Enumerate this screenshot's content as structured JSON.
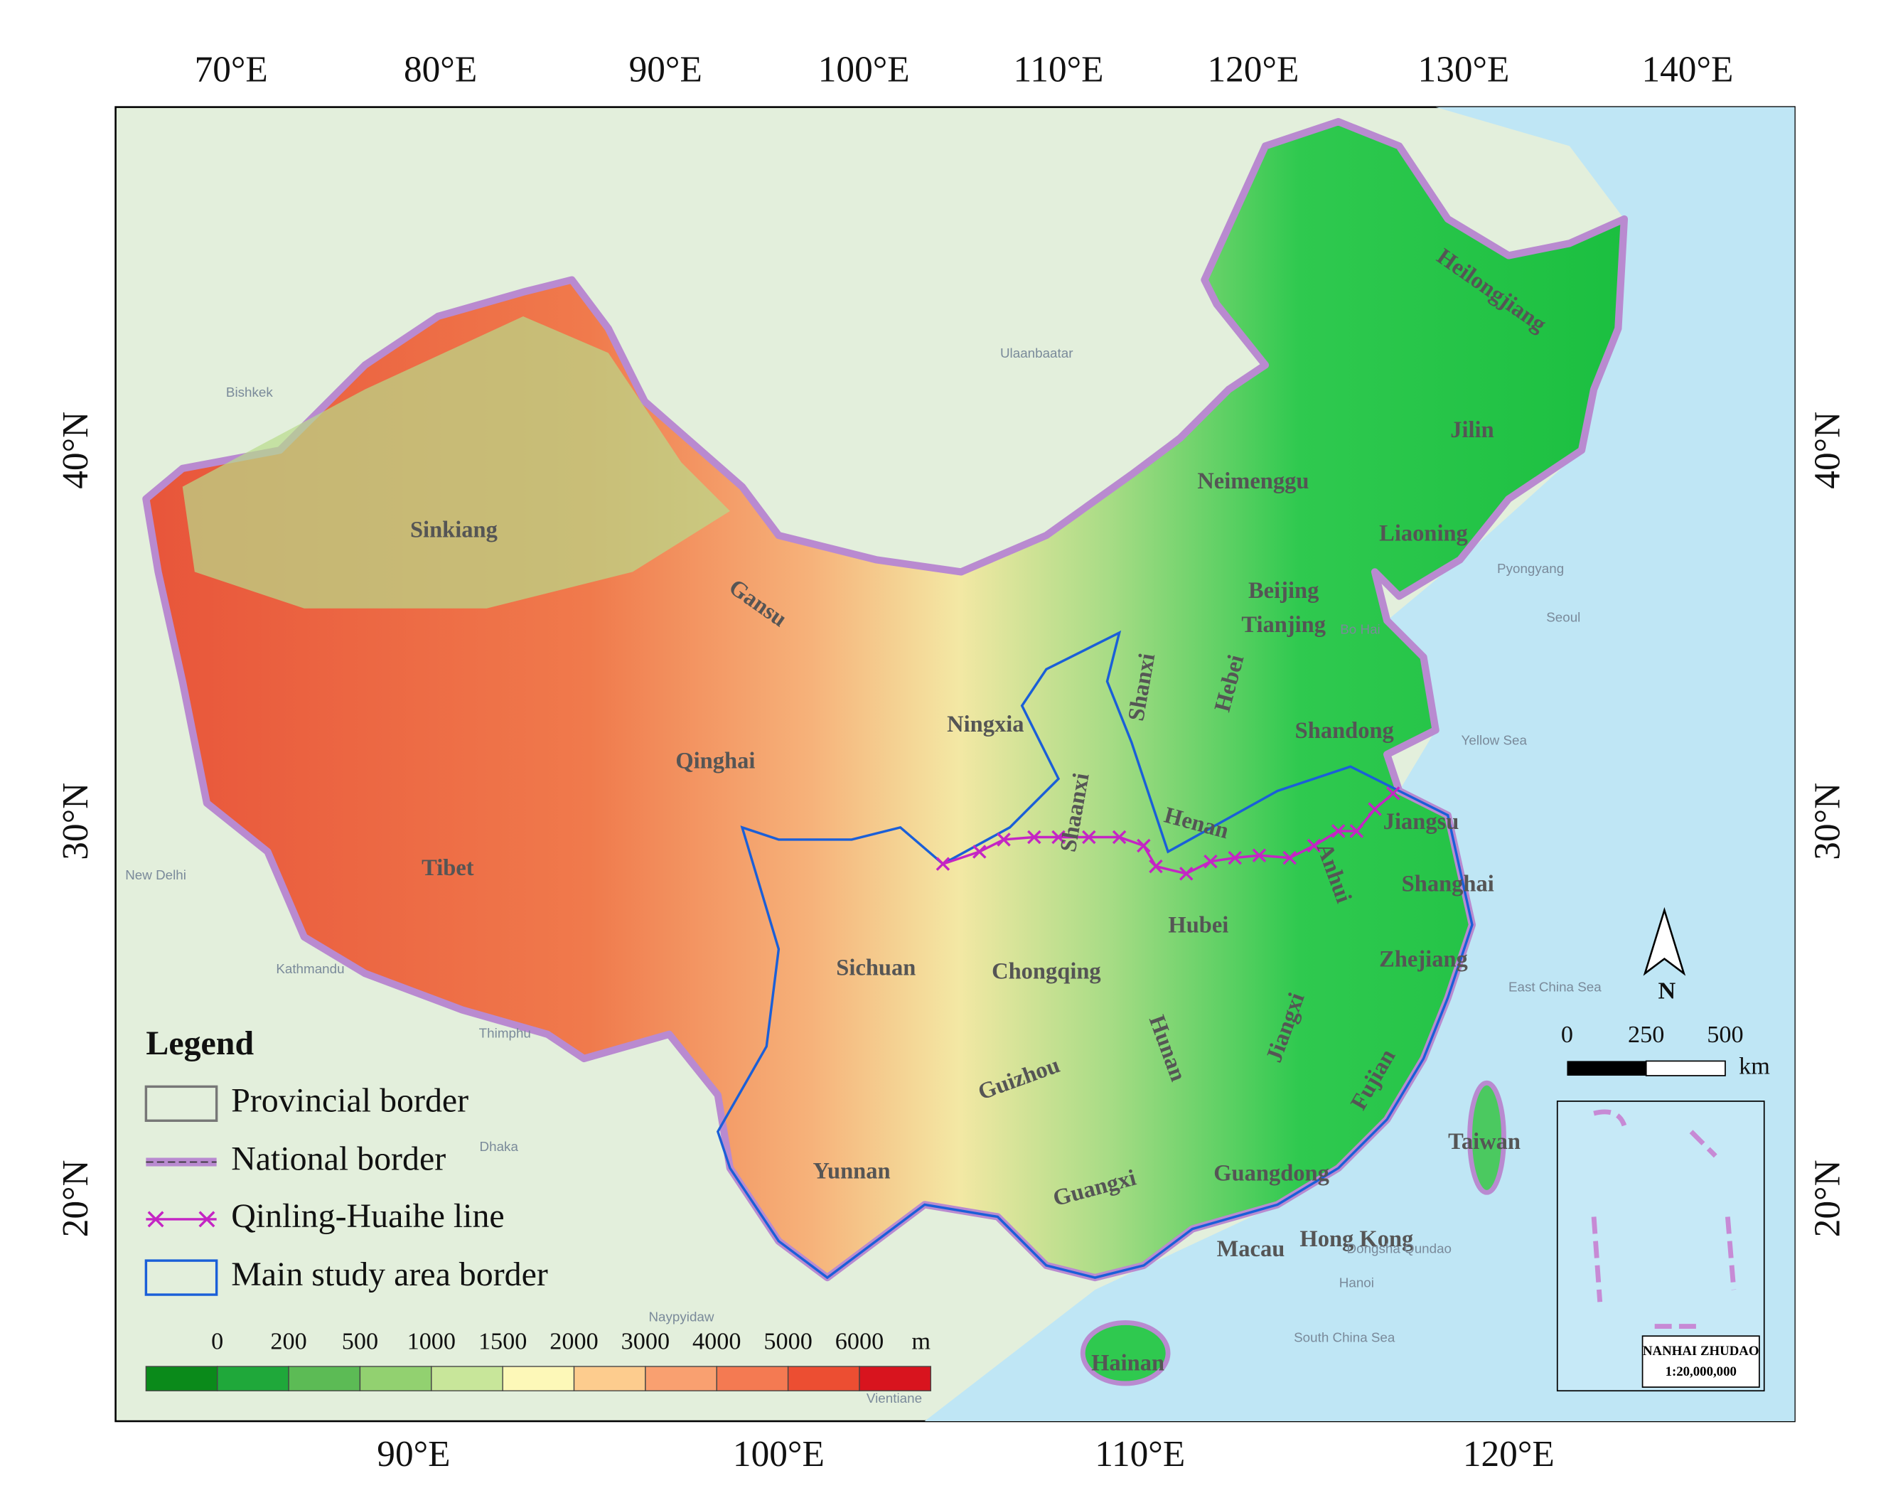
{
  "graticule": {
    "top": [
      "70°E",
      "80°E",
      "90°E",
      "100°E",
      "110°E",
      "120°E",
      "130°E",
      "140°E"
    ],
    "bottom": [
      "90°E",
      "100°E",
      "110°E",
      "120°E"
    ],
    "left": [
      "40°N",
      "30°N",
      "20°N"
    ],
    "right": [
      "40°N",
      "30°N",
      "20°N"
    ]
  },
  "regions": [
    "Heilongjiang",
    "Jilin",
    "Neimenggu",
    "Liaoning",
    "Sinkiang",
    "Gansu",
    "Beijing",
    "Tianjing",
    "Hebei",
    "Shanxi",
    "Shandong",
    "Ningxia",
    "Qinghai",
    "Shaanxi",
    "Henan",
    "Jiangsu",
    "Anhui",
    "Shanghai",
    "Tibet",
    "Hubei",
    "Sichuan",
    "Chongqing",
    "Zhejiang",
    "Hunan",
    "Jiangxi",
    "Fujian",
    "Guizhou",
    "Taiwan",
    "Yunnan",
    "Guangxi",
    "Guangdong",
    "Hong Kong",
    "Macau",
    "Hainan"
  ],
  "places": [
    "Ulaanbaatar",
    "Bishkek",
    "Pyongyang",
    "Seoul",
    "Bo Hai",
    "Yellow Sea",
    "East China Sea",
    "South China Sea",
    "Dongsha Qundao",
    "Hanoi",
    "Naypyidaw",
    "Vientiane",
    "New Delhi",
    "Kathmandu",
    "Thimphu",
    "Dhaka"
  ],
  "legend": {
    "title": "Legend",
    "items": [
      "Provincial border",
      "National border",
      "Qinling-Huaihe line",
      "Main study area border"
    ],
    "elevation": {
      "labels": [
        0,
        200,
        500,
        1000,
        1500,
        2000,
        3000,
        4000,
        5000,
        6000
      ],
      "unit": "m"
    }
  },
  "scale_bar": {
    "labels": [
      0,
      250,
      500
    ],
    "unit": "km"
  },
  "north": "N",
  "inset": {
    "title": "NANHAI ZHUDAO",
    "scale": "1:20,000,000"
  }
}
